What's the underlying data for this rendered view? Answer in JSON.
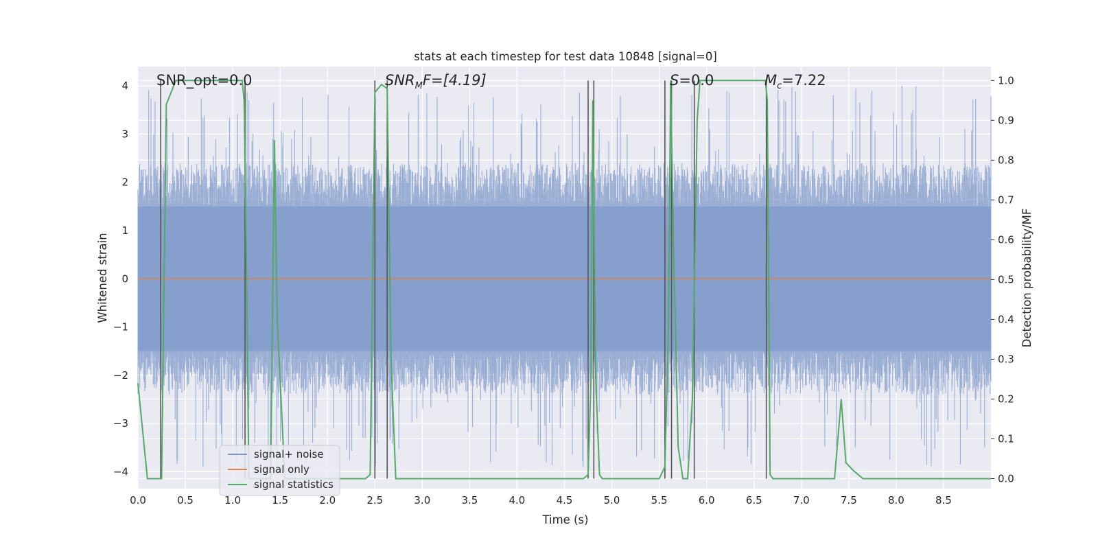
{
  "chart_data": {
    "type": "line",
    "title": "stats at each timestep for test data 10848 [signal=0]",
    "xlabel": "Time (s)",
    "ylabel_left": "Whitened strain",
    "ylabel_right": "Detection probability/MF",
    "xlim": [
      0,
      9.0
    ],
    "ylim_left": [
      -4.35,
      4.4
    ],
    "ylim_right": [
      -0.025,
      1.035
    ],
    "xticks": [
      "0.0",
      "0.5",
      "1.0",
      "1.5",
      "2.0",
      "2.5",
      "3.0",
      "3.5",
      "4.0",
      "4.5",
      "5.0",
      "5.5",
      "6.0",
      "6.5",
      "7.0",
      "7.5",
      "8.0",
      "8.5"
    ],
    "yticks_left": [
      "4",
      "3",
      "2",
      "1",
      "0",
      "−1",
      "−2",
      "−3",
      "−4"
    ],
    "yticks_right": [
      "1.0",
      "0.9",
      "0.8",
      "0.7",
      "0.6",
      "0.5",
      "0.4",
      "0.3",
      "0.2",
      "0.1",
      "0.0"
    ],
    "grid": true,
    "legend_position": "lower-left",
    "colors": {
      "noise": "#7f99c9",
      "signal_only": "#dd8452",
      "statistics": "#55a868",
      "vline": "#555555",
      "axes_bg": "#eaeaf2"
    },
    "annotations": {
      "snr_opt": "SNR_opt=0.0",
      "snr_mf_sym": "SNR",
      "snr_mf_sub": "M",
      "snr_mf_rest": "F=[4.19]",
      "s_sym": "S",
      "s_rest": "=0.0",
      "mc_sym": "M",
      "mc_sub": "c",
      "mc_rest": "=7.22"
    },
    "series": [
      {
        "name": "signal+ noise",
        "axis": "left",
        "style": "dense noise band",
        "band_core": [
          -1.5,
          1.5
        ],
        "peak_max": 4.0,
        "trough_min": -3.9
      },
      {
        "name": "signal only",
        "axis": "left",
        "y_constant": 0.0
      },
      {
        "name": "signal statistics",
        "axis": "right",
        "x": [
          0.0,
          0.05,
          0.1,
          0.25,
          0.3,
          0.4,
          0.5,
          1.1,
          1.12,
          1.15,
          1.17,
          1.25,
          1.4,
          1.44,
          1.47,
          1.55,
          1.6,
          2.4,
          2.45,
          2.5,
          2.57,
          2.63,
          2.67,
          2.72,
          4.7,
          4.75,
          4.78,
          4.8,
          4.83,
          4.87,
          4.9,
          5.5,
          5.56,
          5.6,
          5.62,
          5.65,
          5.7,
          5.75,
          5.8,
          5.85,
          5.9,
          5.93,
          5.95,
          6.62,
          6.64,
          6.67,
          6.7,
          7.3,
          7.35,
          7.42,
          7.47,
          7.55,
          7.6,
          7.65,
          9.0
        ],
        "y": [
          0.24,
          0.12,
          0.0,
          0.0,
          0.94,
          1.0,
          1.0,
          1.0,
          0.95,
          0.45,
          0.0,
          0.0,
          0.0,
          0.85,
          0.4,
          0.0,
          0.0,
          0.0,
          0.01,
          0.97,
          0.99,
          0.98,
          0.3,
          0.0,
          0.0,
          0.01,
          0.25,
          0.95,
          0.25,
          0.01,
          0.0,
          0.0,
          0.03,
          0.4,
          1.0,
          0.6,
          0.08,
          0.0,
          0.0,
          0.2,
          0.9,
          1.0,
          1.0,
          1.0,
          0.95,
          0.01,
          0.0,
          0.0,
          0.0,
          0.2,
          0.04,
          0.02,
          0.01,
          0.0,
          0.0
        ]
      }
    ],
    "vertical_lines_x": [
      0.24,
      1.13,
      2.5,
      2.63,
      4.75,
      4.81,
      5.56,
      5.63,
      5.87,
      6.63
    ]
  }
}
